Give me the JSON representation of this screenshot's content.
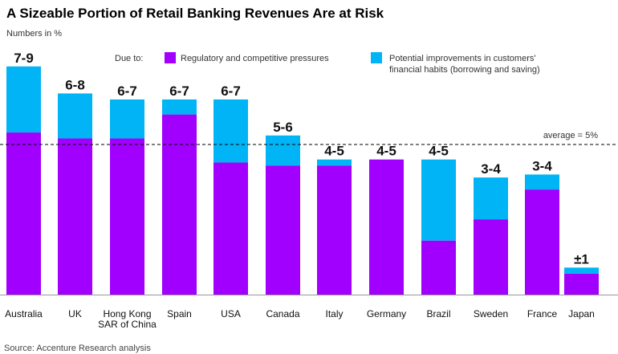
{
  "chart_data": {
    "type": "bar",
    "stacked": true,
    "title": "A Sizeable Portion of Retail Banking Revenues Are at Risk",
    "subtitle": "Numbers in %",
    "legend_prefix": "Due to:",
    "legend_position": "top",
    "categories": [
      "Australia",
      "UK",
      "Hong Kong\nSAR of China",
      "Spain",
      "USA",
      "Canada",
      "Italy",
      "Germany",
      "Brazil",
      "Sweden",
      "France",
      "Japan"
    ],
    "range_labels": [
      "7-9",
      "6-8",
      "6-7",
      "6-7",
      "6-7",
      "5-6",
      "4-5",
      "4-5",
      "4-5",
      "3-4",
      "3-4",
      "±1"
    ],
    "series": [
      {
        "name": "Regulatory and competitive pressures",
        "color": "#A100FF",
        "values": [
          5.4,
          5.2,
          5.2,
          6.0,
          4.4,
          4.3,
          4.3,
          4.5,
          1.8,
          2.5,
          3.5,
          0.7
        ]
      },
      {
        "name": "Potential improvements in customers' financial habits (borrowing and saving)",
        "color": "#00B4F5",
        "values": [
          2.2,
          1.5,
          1.3,
          0.5,
          2.1,
          1.0,
          0.2,
          0.0,
          2.7,
          1.4,
          0.5,
          0.2
        ]
      }
    ],
    "legend_lines": [
      "Regulatory and competitive pressures",
      "Potential improvements in customers'",
      "financial habits (borrowing and saving)"
    ],
    "average": {
      "value": 5,
      "label": "average = 5%"
    },
    "ylim": [
      0,
      8
    ],
    "grid": false,
    "source": "Source: Accenture Research analysis"
  }
}
